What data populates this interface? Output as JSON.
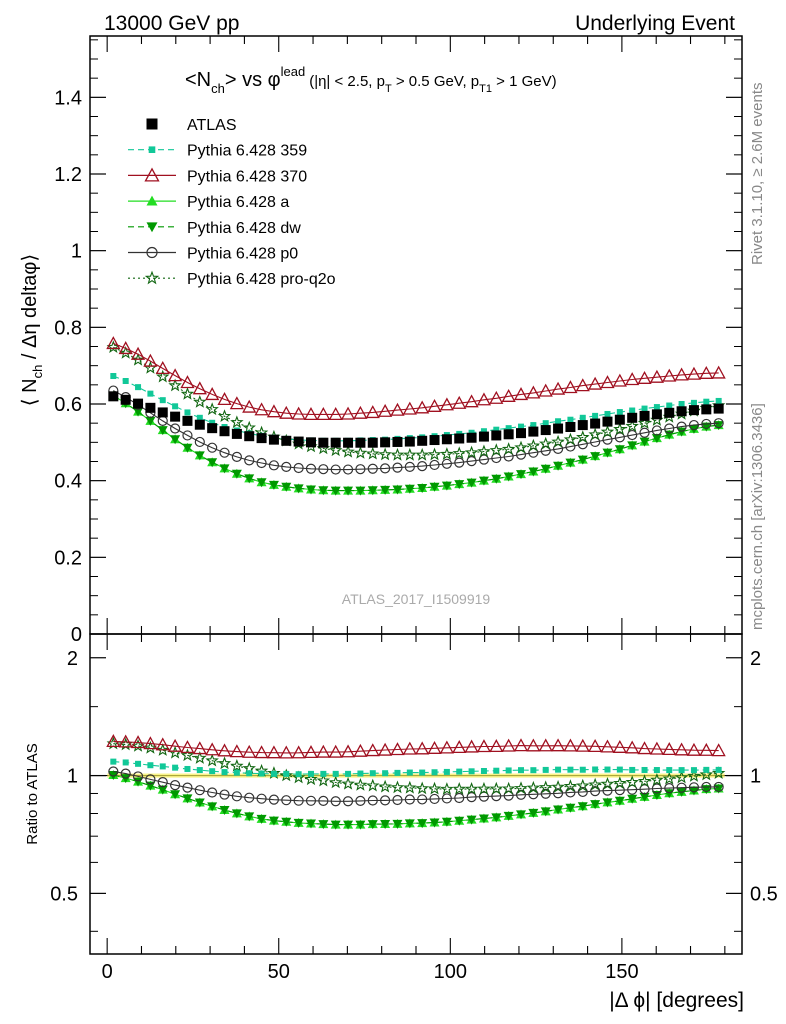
{
  "header": {
    "left": "13000 GeV pp",
    "right": "Underlying Event"
  },
  "side_labels": {
    "rivet": "Rivet 3.1.10, ≥ 2.6M events",
    "mcplots": "mcplots.cern.ch [arXiv:1306.3436]"
  },
  "chart_data": [
    {
      "type": "scatter",
      "title": "<Nch> vs φlead (|η| < 2.5, pT > 0.5 GeV, pT1 > 1 GeV)",
      "title_parts": {
        "a": "<N",
        "a_sub": "ch",
        "b": "> vs φ",
        "b_sup": "lead",
        "c": "(|η| < 2.5, p",
        "c_sub": "T",
        "d": " > 0.5 GeV, p",
        "d_sub": "T1",
        "e": " > 1 GeV)"
      },
      "ylabel": "⟨ Nch / Δη deltaφ ⟩",
      "ylabel_parts": {
        "a": "⟨ N",
        "a_sub": "ch",
        "b": " / Δη deltaφ⟩"
      },
      "xlabel": "",
      "watermark": "ATLAS_2017_I1509919",
      "xlim": [
        -5,
        185
      ],
      "ylim": [
        0,
        1.56
      ],
      "yticks": [
        0,
        0.2,
        0.4,
        0.6,
        0.8,
        1,
        1.2,
        1.4
      ],
      "ytick_labels": [
        "0",
        "0.2",
        "0.4",
        "0.6",
        "0.8",
        "1",
        "1.2",
        "1.4"
      ],
      "grid": false,
      "legend_position": "top-left",
      "x": [
        1.8,
        5.4,
        9,
        12.6,
        16.2,
        19.8,
        23.4,
        27,
        30.6,
        34.2,
        37.8,
        41.4,
        45,
        48.6,
        52.2,
        55.8,
        59.4,
        63,
        66.6,
        70.2,
        73.8,
        77.4,
        81,
        84.6,
        88.2,
        91.8,
        95.4,
        99,
        102.6,
        106.2,
        109.8,
        113.4,
        117,
        120.6,
        124.2,
        127.8,
        131.4,
        135,
        138.6,
        142.2,
        145.8,
        149.4,
        153,
        156.6,
        160.2,
        163.8,
        167.4,
        171,
        174.6,
        178.2
      ],
      "series": [
        {
          "name": "ATLAS",
          "color": "#000000",
          "marker": "square",
          "line": "none",
          "values": [
            0.62,
            0.611,
            0.601,
            0.59,
            0.578,
            0.567,
            0.556,
            0.546,
            0.537,
            0.529,
            0.522,
            0.516,
            0.511,
            0.507,
            0.504,
            0.502,
            0.5,
            0.499,
            0.499,
            0.499,
            0.499,
            0.499,
            0.5,
            0.501,
            0.502,
            0.504,
            0.506,
            0.508,
            0.51,
            0.512,
            0.515,
            0.518,
            0.521,
            0.524,
            0.528,
            0.532,
            0.536,
            0.54,
            0.545,
            0.549,
            0.554,
            0.559,
            0.564,
            0.569,
            0.573,
            0.577,
            0.581,
            0.584,
            0.586,
            0.588
          ]
        },
        {
          "name": "Pythia 6.428 359",
          "color": "#11c898",
          "marker": "square-small",
          "line": "dashed",
          "values": [
            0.673,
            0.66,
            0.644,
            0.627,
            0.61,
            0.594,
            0.578,
            0.564,
            0.551,
            0.54,
            0.531,
            0.523,
            0.517,
            0.512,
            0.509,
            0.506,
            0.505,
            0.504,
            0.504,
            0.504,
            0.505,
            0.506,
            0.507,
            0.509,
            0.511,
            0.513,
            0.516,
            0.519,
            0.522,
            0.525,
            0.529,
            0.533,
            0.537,
            0.541,
            0.545,
            0.55,
            0.555,
            0.559,
            0.564,
            0.569,
            0.574,
            0.579,
            0.583,
            0.588,
            0.592,
            0.596,
            0.6,
            0.603,
            0.606,
            0.608
          ]
        },
        {
          "name": "Pythia 6.428 370",
          "color": "#a01020",
          "marker": "triangle-open",
          "line": "solid",
          "values": [
            0.758,
            0.745,
            0.73,
            0.712,
            0.693,
            0.674,
            0.656,
            0.64,
            0.625,
            0.612,
            0.601,
            0.592,
            0.585,
            0.58,
            0.576,
            0.574,
            0.573,
            0.573,
            0.573,
            0.574,
            0.576,
            0.578,
            0.581,
            0.584,
            0.587,
            0.59,
            0.594,
            0.598,
            0.602,
            0.606,
            0.611,
            0.615,
            0.62,
            0.625,
            0.629,
            0.634,
            0.639,
            0.643,
            0.648,
            0.652,
            0.656,
            0.66,
            0.664,
            0.667,
            0.67,
            0.673,
            0.676,
            0.678,
            0.68,
            0.681
          ]
        },
        {
          "name": "Pythia 6.428 a",
          "color": "#22dd22",
          "marker": "triangle-up",
          "line": "solid",
          "values": [
            0.622,
            0.602,
            0.58,
            0.556,
            0.532,
            0.508,
            0.486,
            0.466,
            0.448,
            0.432,
            0.418,
            0.406,
            0.396,
            0.389,
            0.384,
            0.38,
            0.377,
            0.375,
            0.374,
            0.374,
            0.374,
            0.375,
            0.376,
            0.377,
            0.379,
            0.381,
            0.384,
            0.387,
            0.391,
            0.395,
            0.4,
            0.405,
            0.411,
            0.417,
            0.424,
            0.431,
            0.439,
            0.447,
            0.455,
            0.464,
            0.473,
            0.482,
            0.492,
            0.502,
            0.511,
            0.52,
            0.528,
            0.535,
            0.541,
            0.545
          ]
        },
        {
          "name": "Pythia 6.428 dw",
          "color": "#009900",
          "marker": "triangle-down",
          "line": "dashed",
          "values": [
            0.622,
            0.602,
            0.58,
            0.556,
            0.532,
            0.508,
            0.486,
            0.466,
            0.448,
            0.432,
            0.418,
            0.406,
            0.396,
            0.389,
            0.384,
            0.38,
            0.377,
            0.375,
            0.374,
            0.374,
            0.374,
            0.375,
            0.376,
            0.377,
            0.379,
            0.381,
            0.384,
            0.387,
            0.391,
            0.395,
            0.4,
            0.405,
            0.411,
            0.417,
            0.424,
            0.431,
            0.439,
            0.447,
            0.455,
            0.464,
            0.473,
            0.482,
            0.492,
            0.502,
            0.511,
            0.52,
            0.528,
            0.535,
            0.541,
            0.545
          ]
        },
        {
          "name": "Pythia 6.428 p0",
          "color": "#333333",
          "marker": "circle-open",
          "line": "solid",
          "values": [
            0.635,
            0.618,
            0.598,
            0.577,
            0.556,
            0.536,
            0.518,
            0.501,
            0.486,
            0.473,
            0.462,
            0.453,
            0.446,
            0.44,
            0.436,
            0.433,
            0.431,
            0.43,
            0.429,
            0.429,
            0.43,
            0.431,
            0.432,
            0.434,
            0.436,
            0.438,
            0.441,
            0.444,
            0.447,
            0.451,
            0.455,
            0.459,
            0.463,
            0.468,
            0.473,
            0.478,
            0.483,
            0.489,
            0.495,
            0.501,
            0.507,
            0.513,
            0.519,
            0.525,
            0.531,
            0.536,
            0.541,
            0.545,
            0.548,
            0.55
          ]
        },
        {
          "name": "Pythia 6.428 pro-q2o",
          "color": "#116611",
          "marker": "star",
          "line": "dotted",
          "values": [
            0.748,
            0.733,
            0.715,
            0.694,
            0.671,
            0.648,
            0.626,
            0.605,
            0.586,
            0.568,
            0.552,
            0.538,
            0.525,
            0.514,
            0.504,
            0.496,
            0.489,
            0.484,
            0.479,
            0.475,
            0.472,
            0.47,
            0.468,
            0.467,
            0.467,
            0.467,
            0.468,
            0.469,
            0.471,
            0.473,
            0.476,
            0.479,
            0.482,
            0.486,
            0.491,
            0.496,
            0.501,
            0.507,
            0.513,
            0.52,
            0.527,
            0.534,
            0.542,
            0.55,
            0.558,
            0.566,
            0.574,
            0.582,
            0.589,
            0.596
          ]
        }
      ]
    },
    {
      "type": "scatter",
      "title": "",
      "ylabel": "Ratio to ATLAS",
      "xlabel": "|Δ ϕ| [degrees]",
      "xlim": [
        -5,
        185
      ],
      "xticks": [
        0,
        50,
        100,
        150
      ],
      "xtick_labels": [
        "0",
        "50",
        "100",
        "150"
      ],
      "ylim": [
        0.35,
        2.3
      ],
      "yscale": "log",
      "yticks": [
        0.5,
        1,
        2
      ],
      "ytick_labels": [
        "0.5",
        "1",
        "2"
      ],
      "reference_line": 1,
      "grid": false
    }
  ]
}
